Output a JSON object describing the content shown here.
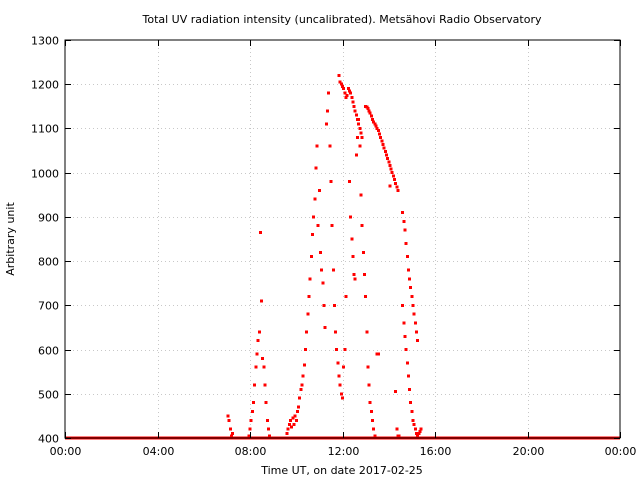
{
  "chart_data": {
    "type": "scatter",
    "title": "Total UV radiation intensity (uncalibrated). Metsähovi Radio Observatory",
    "xlabel": "Time UT, on date 2017-02-25",
    "ylabel": "Arbitrary unit",
    "x_unit": "hours UT",
    "xlim": [
      0,
      24
    ],
    "ylim": [
      400,
      1300
    ],
    "x_ticks": [
      {
        "value": 0,
        "label": "00:00"
      },
      {
        "value": 4,
        "label": "04:00"
      },
      {
        "value": 8,
        "label": "08:00"
      },
      {
        "value": 12,
        "label": "12:00"
      },
      {
        "value": 16,
        "label": "16:00"
      },
      {
        "value": 20,
        "label": "20:00"
      },
      {
        "value": 24,
        "label": "00:00"
      }
    ],
    "y_ticks": [
      400,
      500,
      600,
      700,
      800,
      900,
      1000,
      1100,
      1200,
      1300
    ],
    "grid": true,
    "marker_color": "#ff0000",
    "baseline": {
      "value": 400,
      "x_from": 0,
      "x_to": 24,
      "note": "continuous points at axis floor"
    },
    "series": [
      {
        "points": [
          [
            7.05,
            450
          ],
          [
            7.1,
            440
          ],
          [
            7.15,
            420
          ],
          [
            7.2,
            405
          ],
          [
            7.25,
            410
          ],
          [
            7.95,
            405
          ],
          [
            8.0,
            420
          ],
          [
            8.05,
            440
          ],
          [
            8.1,
            460
          ],
          [
            8.15,
            480
          ],
          [
            8.2,
            520
          ],
          [
            8.25,
            560
          ],
          [
            8.3,
            590
          ],
          [
            8.35,
            620
          ],
          [
            8.4,
            640
          ],
          [
            8.45,
            865
          ],
          [
            8.5,
            710
          ],
          [
            8.55,
            580
          ],
          [
            8.6,
            560
          ],
          [
            8.65,
            520
          ],
          [
            8.7,
            480
          ],
          [
            8.75,
            440
          ],
          [
            8.8,
            420
          ],
          [
            8.85,
            405
          ],
          [
            9.6,
            410
          ],
          [
            9.65,
            420
          ],
          [
            9.7,
            430
          ],
          [
            9.75,
            440
          ],
          [
            9.8,
            425
          ],
          [
            9.85,
            445
          ],
          [
            9.9,
            430
          ],
          [
            9.95,
            450
          ],
          [
            10.0,
            440
          ],
          [
            10.05,
            460
          ],
          [
            10.1,
            470
          ],
          [
            10.15,
            490
          ],
          [
            10.2,
            510
          ],
          [
            10.25,
            520
          ],
          [
            10.3,
            540
          ],
          [
            10.35,
            565
          ],
          [
            10.4,
            600
          ],
          [
            10.45,
            640
          ],
          [
            10.5,
            680
          ],
          [
            10.55,
            720
          ],
          [
            10.6,
            760
          ],
          [
            10.65,
            810
          ],
          [
            10.7,
            860
          ],
          [
            10.75,
            900
          ],
          [
            10.8,
            940
          ],
          [
            10.85,
            1010
          ],
          [
            10.9,
            1060
          ],
          [
            10.95,
            880
          ],
          [
            11.0,
            960
          ],
          [
            11.05,
            820
          ],
          [
            11.1,
            780
          ],
          [
            11.15,
            750
          ],
          [
            11.2,
            700
          ],
          [
            11.25,
            650
          ],
          [
            11.3,
            1110
          ],
          [
            11.35,
            1140
          ],
          [
            11.4,
            1180
          ],
          [
            11.45,
            1060
          ],
          [
            11.5,
            980
          ],
          [
            11.55,
            880
          ],
          [
            11.6,
            780
          ],
          [
            11.65,
            700
          ],
          [
            11.7,
            640
          ],
          [
            11.75,
            600
          ],
          [
            11.8,
            570
          ],
          [
            11.85,
            540
          ],
          [
            11.9,
            520
          ],
          [
            11.95,
            500
          ],
          [
            12.0,
            490
          ],
          [
            12.05,
            560
          ],
          [
            12.1,
            600
          ],
          [
            12.15,
            720
          ],
          [
            11.85,
            1220
          ],
          [
            11.9,
            1205
          ],
          [
            11.95,
            1200
          ],
          [
            12.0,
            1195
          ],
          [
            12.05,
            1190
          ],
          [
            12.1,
            1180
          ],
          [
            12.15,
            1170
          ],
          [
            12.2,
            1175
          ],
          [
            12.25,
            1190
          ],
          [
            12.3,
            1185
          ],
          [
            12.35,
            1180
          ],
          [
            12.4,
            1170
          ],
          [
            12.45,
            1160
          ],
          [
            12.5,
            1150
          ],
          [
            12.55,
            1140
          ],
          [
            12.6,
            1130
          ],
          [
            12.65,
            1120
          ],
          [
            12.7,
            1110
          ],
          [
            12.75,
            1100
          ],
          [
            12.8,
            1090
          ],
          [
            12.85,
            1080
          ],
          [
            12.3,
            980
          ],
          [
            12.35,
            900
          ],
          [
            12.4,
            850
          ],
          [
            12.45,
            810
          ],
          [
            12.5,
            770
          ],
          [
            12.55,
            760
          ],
          [
            12.6,
            1040
          ],
          [
            12.65,
            1080
          ],
          [
            12.7,
            1120
          ],
          [
            12.75,
            1060
          ],
          [
            12.8,
            950
          ],
          [
            12.85,
            880
          ],
          [
            12.9,
            820
          ],
          [
            12.95,
            770
          ],
          [
            13.0,
            720
          ],
          [
            13.05,
            640
          ],
          [
            13.1,
            560
          ],
          [
            13.15,
            520
          ],
          [
            13.2,
            480
          ],
          [
            13.25,
            460
          ],
          [
            13.3,
            440
          ],
          [
            13.35,
            420
          ],
          [
            13.4,
            405
          ],
          [
            13.0,
            1150
          ],
          [
            13.05,
            1148
          ],
          [
            13.1,
            1145
          ],
          [
            13.15,
            1140
          ],
          [
            13.2,
            1135
          ],
          [
            13.25,
            1128
          ],
          [
            13.3,
            1120
          ],
          [
            13.35,
            1115
          ],
          [
            13.4,
            1110
          ],
          [
            13.45,
            1105
          ],
          [
            13.5,
            1100
          ],
          [
            13.55,
            1095
          ],
          [
            13.6,
            1088
          ],
          [
            13.65,
            1080
          ],
          [
            13.7,
            1072
          ],
          [
            13.75,
            1064
          ],
          [
            13.8,
            1056
          ],
          [
            13.85,
            1048
          ],
          [
            13.9,
            1040
          ],
          [
            13.95,
            1032
          ],
          [
            14.0,
            1024
          ],
          [
            14.05,
            1016
          ],
          [
            14.1,
            1008
          ],
          [
            14.15,
            1000
          ],
          [
            14.2,
            992
          ],
          [
            14.25,
            984
          ],
          [
            14.3,
            976
          ],
          [
            14.35,
            968
          ],
          [
            14.4,
            960
          ],
          [
            13.5,
            590
          ],
          [
            13.55,
            590
          ],
          [
            14.05,
            970
          ],
          [
            14.3,
            505
          ],
          [
            14.35,
            420
          ],
          [
            14.4,
            405
          ],
          [
            14.45,
            405
          ],
          [
            14.6,
            910
          ],
          [
            14.65,
            890
          ],
          [
            14.7,
            870
          ],
          [
            14.75,
            840
          ],
          [
            14.8,
            810
          ],
          [
            14.85,
            780
          ],
          [
            14.9,
            760
          ],
          [
            14.95,
            740
          ],
          [
            15.0,
            720
          ],
          [
            15.05,
            700
          ],
          [
            15.1,
            680
          ],
          [
            15.15,
            660
          ],
          [
            15.2,
            640
          ],
          [
            15.25,
            620
          ],
          [
            14.6,
            700
          ],
          [
            14.65,
            660
          ],
          [
            14.7,
            630
          ],
          [
            14.75,
            600
          ],
          [
            14.8,
            570
          ],
          [
            14.85,
            540
          ],
          [
            14.9,
            510
          ],
          [
            14.95,
            480
          ],
          [
            15.0,
            460
          ],
          [
            15.05,
            440
          ],
          [
            15.1,
            430
          ],
          [
            15.15,
            420
          ],
          [
            15.2,
            410
          ],
          [
            15.25,
            405
          ],
          [
            15.3,
            410
          ],
          [
            15.35,
            415
          ],
          [
            15.4,
            420
          ]
        ]
      }
    ]
  }
}
